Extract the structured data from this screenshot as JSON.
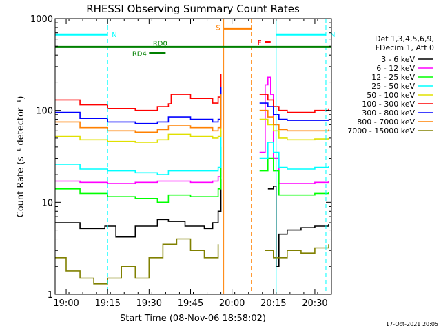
{
  "chart_data": {
    "type": "line",
    "title": "RHESSI Observing Summary Count Rates",
    "xlabel": "Start Time (08-Nov-06 18:58:02)",
    "ylabel": "Count Rate (s⁻¹ detector⁻¹)",
    "y_scale": "log",
    "ylim": [
      1,
      1000
    ],
    "y_ticks": [
      1,
      10,
      100,
      1000
    ],
    "y_tick_labels": [
      "1",
      "10",
      "100",
      "1000"
    ],
    "xlim": [
      "18:56",
      "20:36"
    ],
    "x_ticks": [
      "19:00",
      "19:15",
      "19:30",
      "19:45",
      "20:00",
      "20:15",
      "20:30"
    ],
    "x_tick_labels": [
      "19:00",
      "19:15",
      "19:30",
      "19:45",
      "20:00",
      "20:15",
      "20:30"
    ],
    "grid": false,
    "legend_position": "right",
    "legend_header": [
      "Det 1,3,4,5,6,9,",
      "FDecim 1, Att 0"
    ],
    "series": [
      {
        "name": "3 - 6 keV",
        "color": "#000000",
        "x": [
          "18:56",
          "19:05",
          "19:14",
          "19:18",
          "19:25",
          "19:33",
          "19:37",
          "19:43",
          "19:50",
          "19:53",
          "19:55",
          "19:56",
          "19:57",
          "20:09",
          "20:13",
          "20:15",
          "20:16",
          "20:17",
          "20:20",
          "20:25",
          "20:30",
          "20:35"
        ],
        "y": [
          6,
          5.2,
          5.5,
          4.2,
          5.5,
          6.5,
          6.2,
          5.5,
          5.2,
          6,
          8,
          18,
          0,
          0,
          14,
          15,
          2,
          4.5,
          5,
          5.3,
          5.5,
          5.8
        ]
      },
      {
        "name": "6 - 12 keV",
        "color": "#ff00ff",
        "x": [
          "18:56",
          "19:05",
          "19:15",
          "19:25",
          "19:33",
          "19:37",
          "19:45",
          "19:53",
          "19:55",
          "19:56",
          "19:57",
          "20:09",
          "20:10",
          "20:12",
          "20:13",
          "20:14",
          "20:15",
          "20:17",
          "20:20",
          "20:30",
          "20:35"
        ],
        "y": [
          17,
          16.5,
          16,
          16.5,
          17,
          17,
          16.5,
          17,
          19,
          30,
          0,
          0,
          35,
          190,
          230,
          150,
          30,
          16,
          16,
          16.5,
          17
        ]
      },
      {
        "name": "12 - 25 keV",
        "color": "#00ff00",
        "x": [
          "18:56",
          "19:05",
          "19:15",
          "19:25",
          "19:33",
          "19:37",
          "19:45",
          "19:53",
          "19:55",
          "19:56",
          "19:57",
          "20:09",
          "20:10",
          "20:13",
          "20:15",
          "20:17",
          "20:20",
          "20:30",
          "20:35"
        ],
        "y": [
          14,
          12.5,
          11.5,
          11,
          10,
          12,
          11.5,
          11.5,
          14,
          40,
          0,
          0,
          22,
          30,
          22,
          12,
          12,
          12.5,
          13
        ]
      },
      {
        "name": "25 - 50 keV",
        "color": "#00ffff",
        "x": [
          "18:56",
          "19:05",
          "19:15",
          "19:25",
          "19:33",
          "19:37",
          "19:45",
          "19:53",
          "19:55",
          "19:56",
          "19:57",
          "20:09",
          "20:10",
          "20:13",
          "20:15",
          "20:17",
          "20:20",
          "20:30",
          "20:35"
        ],
        "y": [
          26,
          23,
          22,
          21,
          20,
          22,
          22,
          22,
          24,
          60,
          0,
          0,
          30,
          45,
          35,
          24,
          23,
          24,
          25
        ]
      },
      {
        "name": "50 - 100 keV",
        "color": "#e0e000",
        "x": [
          "18:56",
          "19:05",
          "19:15",
          "19:25",
          "19:33",
          "19:37",
          "19:45",
          "19:53",
          "19:55",
          "19:56",
          "19:57",
          "20:09",
          "20:10",
          "20:13",
          "20:15",
          "20:17",
          "20:20",
          "20:30",
          "20:35"
        ],
        "y": [
          52,
          48,
          46,
          45,
          48,
          55,
          52,
          50,
          52,
          80,
          0,
          0,
          80,
          70,
          60,
          50,
          48,
          49,
          50
        ]
      },
      {
        "name": "100 - 300 keV",
        "color": "#ff0000",
        "x": [
          "18:56",
          "19:05",
          "19:15",
          "19:25",
          "19:33",
          "19:37",
          "19:38",
          "19:45",
          "19:53",
          "19:55",
          "19:56",
          "19:57",
          "20:09",
          "20:10",
          "20:13",
          "20:15",
          "20:17",
          "20:20",
          "20:30",
          "20:35"
        ],
        "y": [
          130,
          115,
          105,
          100,
          110,
          118,
          150,
          135,
          120,
          140,
          250,
          0,
          0,
          150,
          130,
          110,
          100,
          95,
          100,
          105
        ]
      },
      {
        "name": "300 - 800 keV",
        "color": "#0000ff",
        "x": [
          "18:56",
          "19:05",
          "19:15",
          "19:25",
          "19:33",
          "19:37",
          "19:45",
          "19:53",
          "19:55",
          "19:56",
          "19:57",
          "20:09",
          "20:10",
          "20:13",
          "20:15",
          "20:17",
          "20:20",
          "20:30",
          "20:35"
        ],
        "y": [
          95,
          82,
          75,
          72,
          75,
          85,
          80,
          75,
          80,
          180,
          0,
          0,
          120,
          110,
          90,
          80,
          78,
          78,
          80
        ]
      },
      {
        "name": "800 - 7000 keV",
        "color": "#ff8000",
        "x": [
          "18:56",
          "19:05",
          "19:15",
          "19:25",
          "19:33",
          "19:37",
          "19:45",
          "19:53",
          "19:55",
          "19:56",
          "19:57",
          "20:09",
          "20:10",
          "20:13",
          "20:15",
          "20:17",
          "20:20",
          "20:30",
          "20:35"
        ],
        "y": [
          75,
          65,
          60,
          58,
          62,
          68,
          65,
          60,
          65,
          150,
          0,
          0,
          100,
          85,
          70,
          62,
          60,
          60,
          62
        ]
      },
      {
        "name": "7000 - 15000 keV",
        "color": "#808000",
        "x": [
          "18:56",
          "19:00",
          "19:05",
          "19:10",
          "19:15",
          "19:20",
          "19:25",
          "19:30",
          "19:35",
          "19:40",
          "19:45",
          "19:50",
          "19:55",
          "19:57",
          "20:09",
          "20:12",
          "20:15",
          "20:20",
          "20:25",
          "20:30",
          "20:35"
        ],
        "y": [
          2.5,
          1.8,
          1.5,
          1.3,
          1.5,
          2.0,
          1.5,
          2.5,
          3.5,
          4.0,
          3.0,
          2.5,
          3.5,
          0,
          0,
          3.0,
          2.5,
          3.0,
          2.8,
          3.2,
          3.5
        ]
      }
    ],
    "annotations": [
      {
        "label": "N",
        "color": "#00ffff",
        "x_start": "18:56",
        "x_end": "19:15",
        "x_line": "19:15",
        "y": 670
      },
      {
        "label": "N",
        "color": "#00ffff",
        "x_start": "20:16",
        "x_end": "20:34",
        "x_line": "20:34",
        "y": 670
      },
      {
        "label": "S",
        "color": "#ff8000",
        "x_start": "19:57",
        "x_end": "20:07",
        "x_line": "20:07",
        "y": 780
      },
      {
        "label": "F",
        "color": "#ff0000",
        "x_start": "20:12",
        "x_end": "20:14",
        "y": 555
      },
      {
        "label": "RD0",
        "color": "#008000",
        "x_start": "18:56",
        "x_end": "20:36",
        "y": 490
      },
      {
        "label": "RD4",
        "color": "#008000",
        "x_start": "19:30",
        "x_end": "19:36",
        "y": 420
      }
    ],
    "vertical_lines": [
      {
        "x": "18:56",
        "color": "#00ffff",
        "style": "solid"
      },
      {
        "x": "19:15",
        "color": "#00ffff",
        "style": "dashed"
      },
      {
        "x": "19:57",
        "color": "#ff8000",
        "style": "solid"
      },
      {
        "x": "20:07",
        "color": "#ff8000",
        "style": "dashed"
      },
      {
        "x": "20:16",
        "color": "#00ffff",
        "style": "solid"
      },
      {
        "x": "20:34",
        "color": "#00ffff",
        "style": "dashed"
      }
    ],
    "footer_date": "17-Oct-2021 20:05"
  }
}
